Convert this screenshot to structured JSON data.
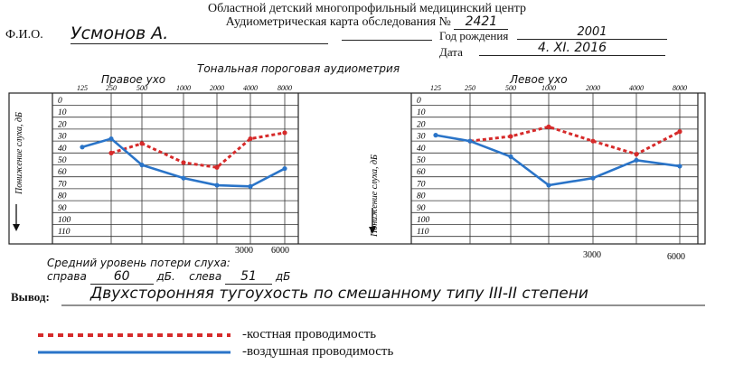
{
  "header": {
    "line1": "Областной детский многопрофильный медицинский центр",
    "line2_prefix": "Аудиометрическая карта обследования  №",
    "card_number": "2421"
  },
  "patient": {
    "fio_label": "Ф.И.О.",
    "fio_value": "Усмонов А.",
    "birth_label": "Год рождения",
    "birth_value": "2001",
    "date_label": "Дата",
    "date_value": "4. XI. 2016"
  },
  "audiogram": {
    "section_title": "Тональная пороговая аудиометрия",
    "right_title": "Правое ухо",
    "left_title": "Левое ухо",
    "right_axis_label": "Понижение слуха, дБ",
    "left_axis_label": "Понижение слуха, дБ",
    "right_bottom_labels": [
      "3000",
      "6000"
    ],
    "left_bottom_labels": [
      "3000",
      "6000"
    ]
  },
  "chart_data": [
    {
      "type": "line",
      "title": "Правое ухо",
      "x": [
        "125",
        "250",
        "500",
        "1000",
        "2000",
        "4000",
        "8000"
      ],
      "yticks": [
        0,
        10,
        20,
        30,
        40,
        50,
        60,
        70,
        80,
        90,
        100,
        110
      ],
      "ylim": [
        0,
        110
      ],
      "ylabel": "Понижение слуха, дБ",
      "series": [
        {
          "name": "-костная проводимость",
          "color": "#d62a2a",
          "style": "dotted",
          "points": [
            [
              1,
              45
            ],
            [
              2,
              37
            ],
            [
              3,
              53
            ],
            [
              4,
              57
            ],
            [
              5,
              33
            ],
            [
              6,
              28
            ]
          ]
        },
        {
          "name": "-воздушная проводимость",
          "color": "#2a74c8",
          "style": "solid",
          "points": [
            [
              0,
              40
            ],
            [
              1,
              33
            ],
            [
              2,
              55
            ],
            [
              3,
              66
            ],
            [
              4,
              72
            ],
            [
              5,
              73
            ],
            [
              6,
              58
            ]
          ]
        }
      ]
    },
    {
      "type": "line",
      "title": "Левое ухо",
      "x": [
        "125",
        "250",
        "500",
        "1000",
        "2000",
        "4000",
        "8000"
      ],
      "yticks": [
        0,
        10,
        20,
        30,
        40,
        50,
        60,
        70,
        80,
        90,
        100,
        110
      ],
      "ylim": [
        0,
        110
      ],
      "ylabel": "Понижение слуха, дБ",
      "series": [
        {
          "name": "-костная проводимость",
          "color": "#d62a2a",
          "style": "dotted",
          "points": [
            [
              1,
              35
            ],
            [
              2,
              31
            ],
            [
              3,
              23
            ],
            [
              4,
              35
            ],
            [
              5,
              46
            ],
            [
              6,
              27
            ]
          ]
        },
        {
          "name": "-воздушная проводимость",
          "color": "#2a74c8",
          "style": "solid",
          "points": [
            [
              0,
              30
            ],
            [
              1,
              35
            ],
            [
              2,
              48
            ],
            [
              3,
              72
            ],
            [
              4,
              66
            ],
            [
              5,
              51
            ],
            [
              6,
              56
            ]
          ]
        }
      ]
    }
  ],
  "summary": {
    "label": "Средний уровень потери слуха:",
    "right_label": "справа",
    "right_value": "60",
    "left_label": "слева",
    "left_value": "51",
    "unit": "дБ."
  },
  "conclusion": {
    "label": "Вывод:",
    "text": "Двухсторонняя тугоухость по смешанному типу III-II степени"
  },
  "legend": {
    "bone": "-костная проводимость",
    "air": "-воздушная проводимость",
    "bone_color": "#d62a2a",
    "air_color": "#2a74c8"
  }
}
